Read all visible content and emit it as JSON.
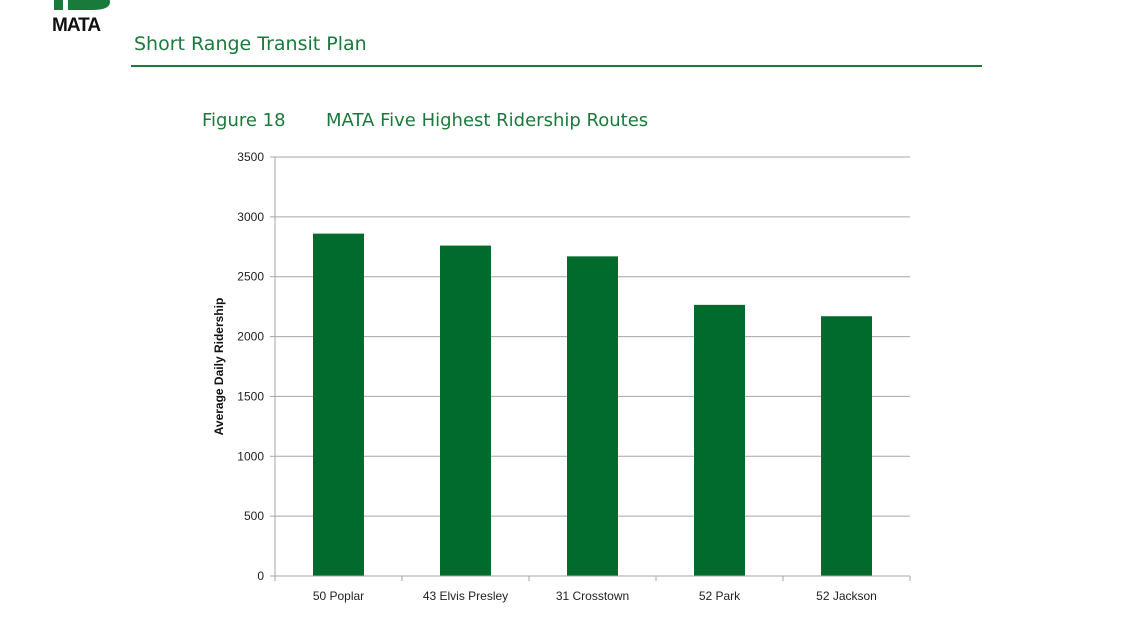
{
  "header": {
    "logo_text": "MATA",
    "title": "Short Range Transit Plan"
  },
  "figure": {
    "label": "Figure 18",
    "title": "MATA Five Highest Ridership Routes"
  },
  "colors": {
    "brand": "#1a7a3c",
    "bar": "#006b2d",
    "grid": "#a6a6a6"
  },
  "chart_data": {
    "type": "bar",
    "title": "MATA Five Highest Ridership Routes",
    "xlabel": "",
    "ylabel": "Average Daily Ridership",
    "categories": [
      "50 Poplar",
      "43 Elvis Presley",
      "31 Crosstown",
      "52 Park",
      "52 Jackson"
    ],
    "values": [
      2860,
      2760,
      2670,
      2265,
      2170
    ],
    "ylim": [
      0,
      3500
    ],
    "yticks": [
      0,
      500,
      1000,
      1500,
      2000,
      2500,
      3000,
      3500
    ],
    "grid": true,
    "legend": "none"
  }
}
